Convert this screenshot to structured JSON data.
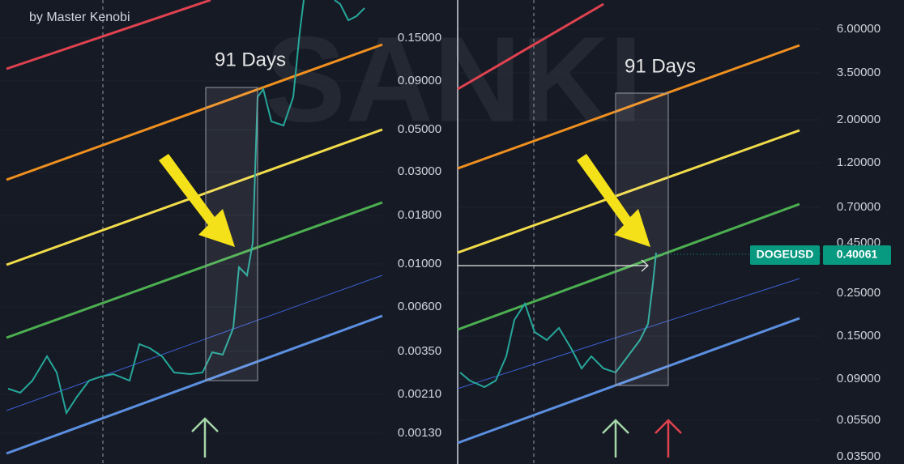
{
  "header": {
    "author": "by Master Kenobi"
  },
  "left_panel": {
    "annotation": "91 Days",
    "price_labels": [
      "0.15000",
      "0.09000",
      "0.05000",
      "0.03000",
      "0.01800",
      "0.01000",
      "0.00600",
      "0.00350",
      "0.00210",
      "0.00130"
    ]
  },
  "right_panel": {
    "annotation": "91 Days",
    "price_labels": [
      "6.00000",
      "3.50000",
      "2.00000",
      "1.20000",
      "0.70000",
      "0.45000",
      "0.25000",
      "0.15000",
      "0.09000",
      "0.05500",
      "0.03500"
    ],
    "symbol": "DOGEUSD",
    "last_price": "0.40061"
  },
  "watermark": "SANKI"
}
